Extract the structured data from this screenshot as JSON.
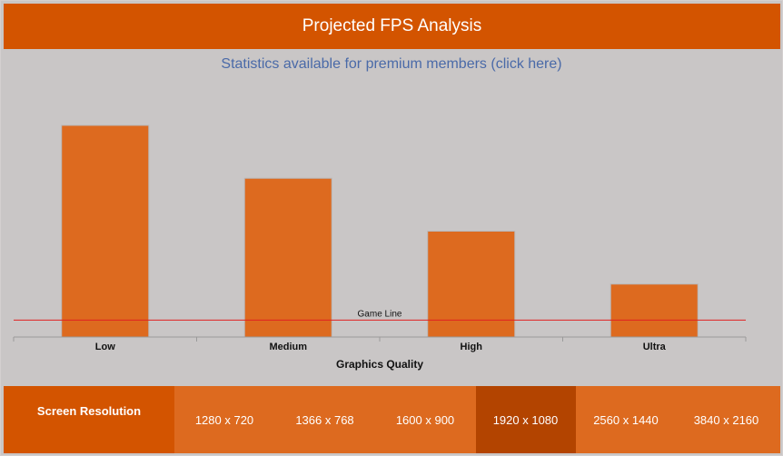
{
  "header": {
    "title": "Projected FPS Analysis"
  },
  "premium_link": "Statistics available for premium members (click here)",
  "chart_data": {
    "type": "bar",
    "categories": [
      "Low",
      "Medium",
      "High",
      "Ultra"
    ],
    "values": [
      100,
      75,
      50,
      25
    ],
    "xlabel": "Graphics Quality",
    "ylabel": "",
    "ylim": [
      0,
      100
    ],
    "grid": false,
    "reference_line": {
      "label": "Game Line",
      "value": 8,
      "color": "#e02020"
    },
    "bar_color": "#dd6a1f"
  },
  "resolution": {
    "label": "Screen Resolution",
    "options": [
      "1280 x 720",
      "1366 x 768",
      "1600 x 900",
      "1920 x 1080",
      "2560 x 1440",
      "3840 x 2160"
    ],
    "selected": "1920 x 1080"
  }
}
